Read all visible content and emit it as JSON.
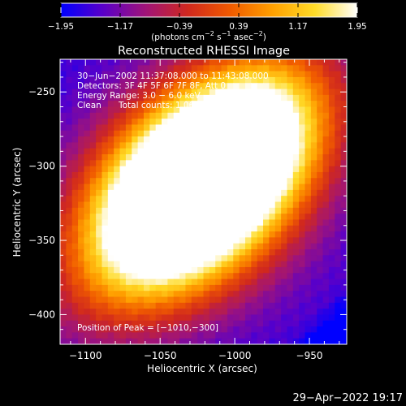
{
  "colorbar": {
    "ticks": [
      "−1.95",
      "−1.17",
      "−0.39",
      "0.39",
      "1.17",
      "1.95"
    ],
    "units_main": "(photons cm",
    "units_sup1": "−2",
    "units_mid": " s",
    "units_sup2": "−1",
    "units_asec": " asec",
    "units_sup3": "−2",
    "units_end": ")",
    "colormap": [
      "#0000ff",
      "#5a00c8",
      "#a01478",
      "#d0281e",
      "#f05a00",
      "#ffa000",
      "#ffdc28",
      "#ffffff"
    ]
  },
  "annotations": {
    "time_range": "30−Jun−2002 11:37:08.000 to 11:43:08.000",
    "detectors": "Detectors: 3F 4F 5F 6F 7F 8F, Att 0",
    "energy": "Energy Range: 3.0 − 6.0 keV",
    "clean_label": "Clean",
    "total_counts": "Total counts: 1.06E+06",
    "peak": "Position of Peak = [−1010,−300]"
  },
  "footer": {
    "date": "29−Apr−2022 19:17"
  },
  "chart_data": {
    "type": "heatmap",
    "title": "Reconstructed RHESSI Image",
    "xlabel": "Heliocentric X (arcsec)",
    "ylabel": "Heliocentric Y (arcsec)",
    "xlim": [
      -1117,
      -925
    ],
    "ylim": [
      -420,
      -228
    ],
    "xticks": [
      -1100,
      -1050,
      -1000,
      -950
    ],
    "xtick_labels": [
      "−1100",
      "−1050",
      "−1000",
      "−950"
    ],
    "yticks": [
      -250,
      -300,
      -350,
      -400
    ],
    "ytick_labels": [
      "−250",
      "−300",
      "−350",
      "−400"
    ],
    "clim": [
      -1.95,
      1.95
    ],
    "peaks": [
      {
        "x": -1010,
        "y": -300,
        "value": 1.95
      },
      {
        "x": -1035,
        "y": -322,
        "value": 1.85
      }
    ]
  }
}
